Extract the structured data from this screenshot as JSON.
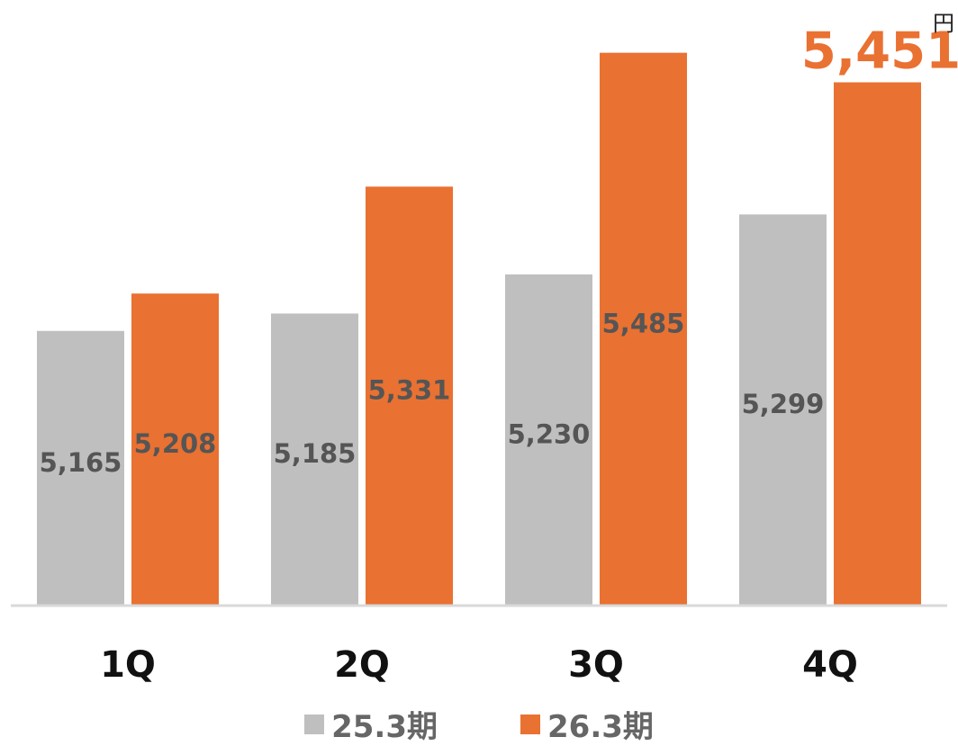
{
  "chart_data": {
    "type": "bar",
    "unit": "円",
    "categories": [
      "1Q",
      "2Q",
      "3Q",
      "4Q"
    ],
    "series": [
      {
        "name": "25.3期",
        "color": "#bfbfbf",
        "label_color": "#555555",
        "values": [
          5165,
          5185,
          5230,
          5299
        ]
      },
      {
        "name": "26.3期",
        "color": "#e97132",
        "label_color": "#555555",
        "values": [
          5208,
          5331,
          5485,
          5451
        ]
      }
    ],
    "highlight": {
      "value": "5,451",
      "color": "#e97132"
    },
    "ylim": [
      4850,
      5525
    ]
  }
}
